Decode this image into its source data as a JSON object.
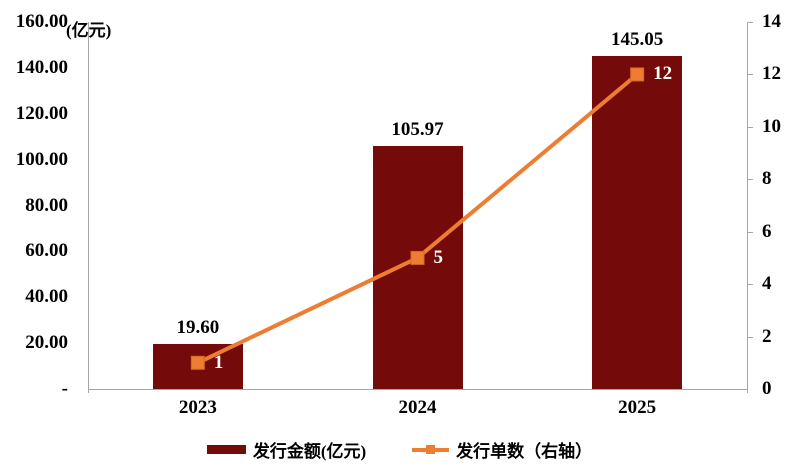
{
  "chart_data": {
    "type": "bar",
    "subtype": "combo-bar-line",
    "title": "",
    "categories": [
      "2023",
      "2024",
      "2025"
    ],
    "series": [
      {
        "name": "发行金额(亿元)",
        "type": "bar",
        "axis": "left",
        "color": "#750A0A",
        "values": [
          19.6,
          105.97,
          145.05
        ],
        "data_labels": [
          "19.60",
          "105.97",
          "145.05"
        ]
      },
      {
        "name": "发行单数（右轴）",
        "type": "line",
        "axis": "right",
        "color": "#ED7D31",
        "marker": "square",
        "marker_border_color": "#D26A24",
        "values": [
          1,
          5,
          12
        ],
        "data_labels": [
          "1",
          "5",
          "12"
        ],
        "data_label_color": "#FFFFFF"
      }
    ],
    "left_axis": {
      "unit_label": "(亿元)",
      "min": 0,
      "max": 160,
      "tick_values": [
        160,
        140,
        120,
        100,
        80,
        60,
        40,
        20,
        0
      ],
      "tick_labels": [
        "160.00",
        "140.00",
        "120.00",
        "100.00",
        "80.00",
        "60.00",
        "40.00",
        "20.00",
        "-"
      ]
    },
    "right_axis": {
      "min": 0,
      "max": 14,
      "tick_values": [
        14,
        12,
        10,
        8,
        6,
        4,
        2,
        0
      ],
      "tick_labels": [
        "14",
        "12",
        "10",
        "8",
        "6",
        "4",
        "2",
        "0"
      ]
    },
    "legend": {
      "position": "bottom",
      "items": [
        {
          "label": "发行金额(亿元)",
          "marker": "bar"
        },
        {
          "label": "发行单数（右轴）",
          "marker": "line-square"
        }
      ]
    },
    "grid": false,
    "axis_color": "#A6A6A6",
    "text_color": "#000000",
    "background": "#FFFFFF"
  }
}
